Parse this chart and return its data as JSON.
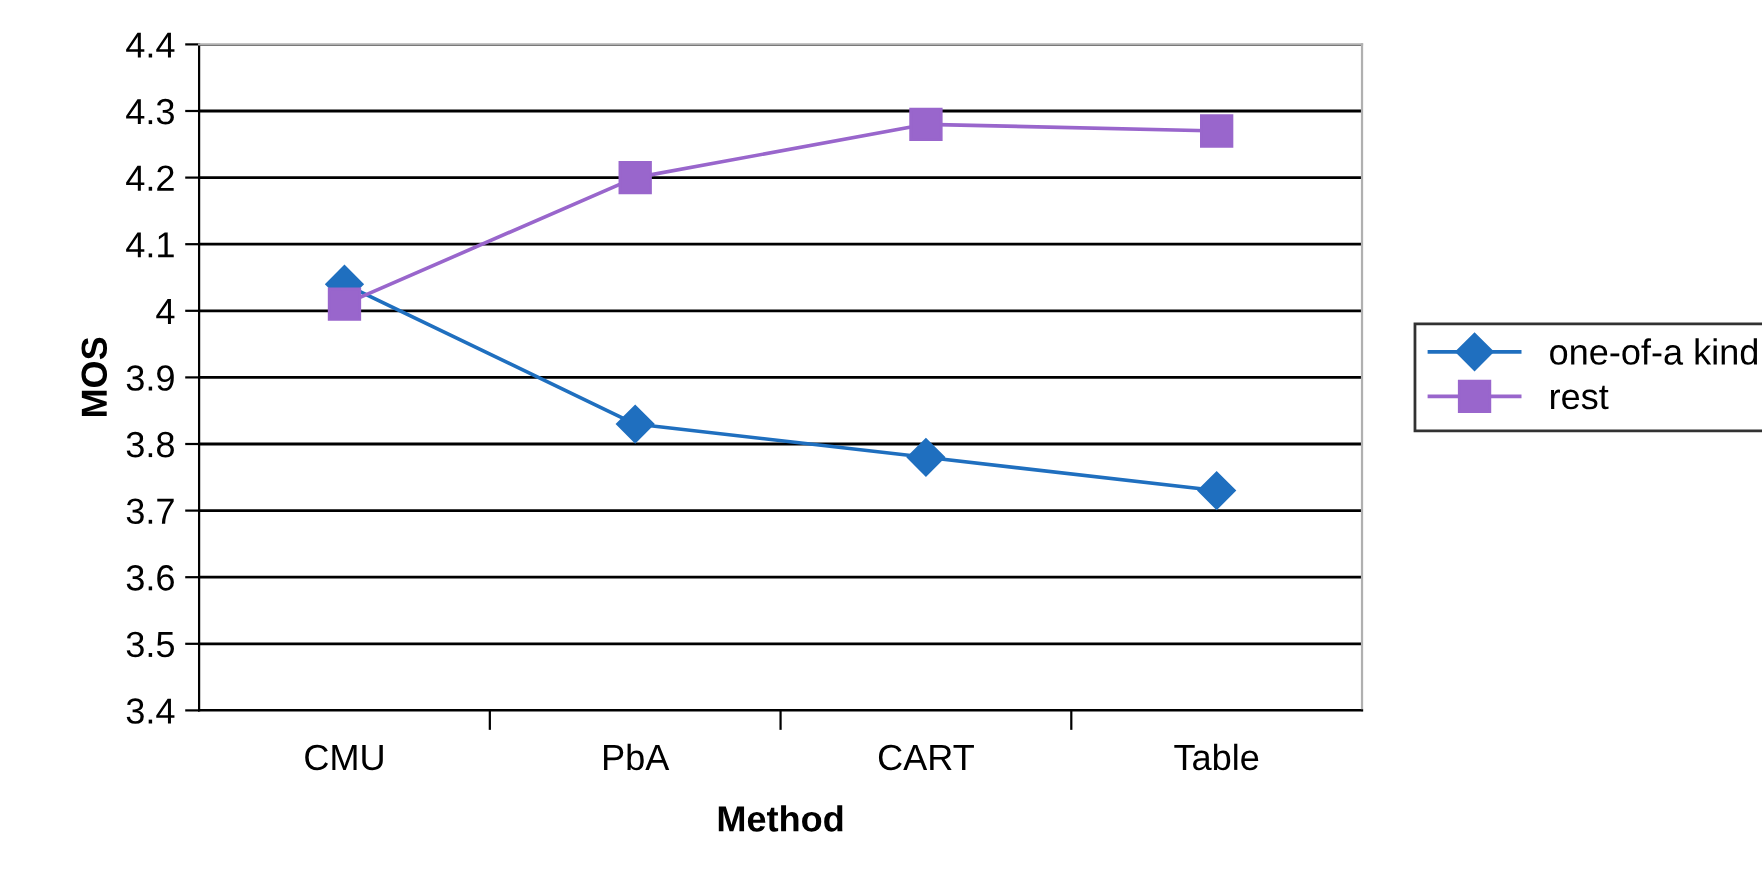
{
  "chart_data": {
    "type": "line",
    "xlabel": "Method",
    "ylabel": "MOS",
    "categories": [
      "CMU",
      "PbA",
      "CART",
      "Table"
    ],
    "series": [
      {
        "name": "one-of-a kind",
        "color": "#1f6fbf",
        "marker": "diamond",
        "values": [
          4.04,
          3.83,
          3.78,
          3.73
        ]
      },
      {
        "name": "rest",
        "color": "#9966cc",
        "marker": "square",
        "values": [
          4.01,
          4.2,
          4.28,
          4.27
        ]
      }
    ],
    "ylim": [
      3.4,
      4.4
    ],
    "yticks": [
      3.4,
      3.5,
      3.6,
      3.7,
      3.8,
      3.9,
      4,
      4.1,
      4.2,
      4.3,
      4.4
    ],
    "grid": "y",
    "legend": "right",
    "line_style": "solid"
  }
}
